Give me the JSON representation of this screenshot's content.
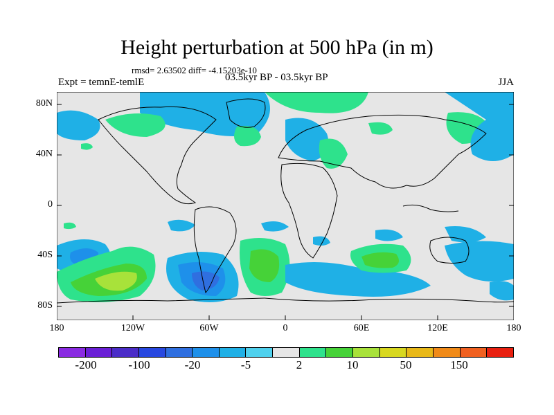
{
  "title": "Height perturbation at 500 hPa (in m)",
  "stats": "rmsd= 2.63502 diff= -4.15203e-10",
  "left_label": "Expt = temnE-temlE",
  "center_label": "03.5kyr BP - 03.5kyr BP",
  "right_label": "JJA",
  "lat_labels": [
    "80N",
    "40N",
    "0",
    "40S",
    "80S"
  ],
  "lon_labels": [
    "180",
    "120W",
    "60W",
    "0",
    "60E",
    "120E",
    "180"
  ],
  "colorbar": {
    "colors": [
      "#8a2be2",
      "#6a1fd6",
      "#4b2dc8",
      "#2848e0",
      "#2f6fe0",
      "#1e90ea",
      "#1fb0e6",
      "#4fd1ee",
      "#e6e6e6",
      "#2ee28c",
      "#46d238",
      "#a8e23a",
      "#d8d820",
      "#e8b818",
      "#f08a18",
      "#f06020",
      "#e82010"
    ],
    "labels": [
      "-200",
      "-100",
      "-20",
      "-5",
      "2",
      "10",
      "50",
      "150"
    ]
  },
  "colors": {
    "background": "#e6e6e6",
    "neg_small": "#1fb0e6",
    "neg_med": "#1e90ea",
    "neg_large": "#2f6fe0",
    "pos_small": "#2ee28c",
    "pos_med": "#46d238",
    "pos_large": "#a8e23a"
  }
}
